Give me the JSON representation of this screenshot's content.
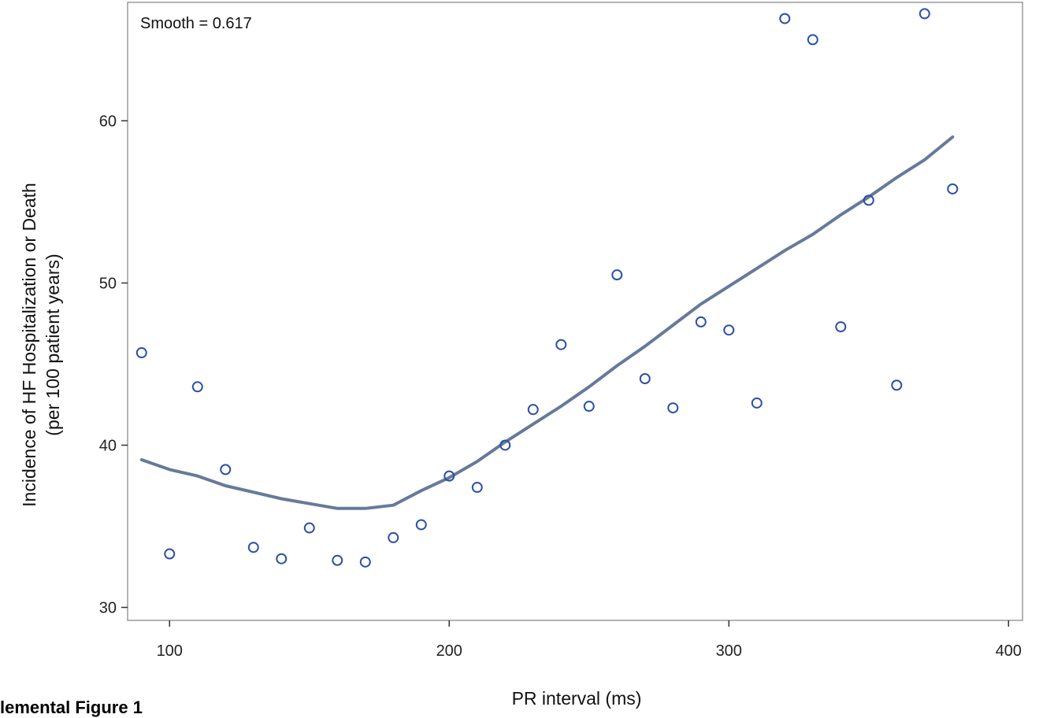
{
  "chart_data": {
    "type": "scatter",
    "annotation": "Smooth = 0.617",
    "xlabel": "PR interval (ms)",
    "ylabel_line1": "Incidence of HF Hospitalization or Death",
    "ylabel_line2": "(per 100 patient years)",
    "xlim": [
      85,
      405
    ],
    "ylim": [
      29.2,
      67.3
    ],
    "xticks": [
      100,
      200,
      300,
      400
    ],
    "yticks": [
      30,
      40,
      50,
      60
    ],
    "grid": false,
    "points": {
      "x": [
        90,
        100,
        110,
        120,
        130,
        140,
        150,
        160,
        170,
        180,
        190,
        200,
        210,
        220,
        230,
        240,
        250,
        260,
        270,
        280,
        290,
        300,
        310,
        320,
        330,
        340,
        350,
        360,
        370,
        380
      ],
      "y": [
        45.7,
        33.3,
        43.6,
        38.5,
        33.7,
        33.0,
        34.9,
        32.9,
        32.8,
        34.3,
        35.1,
        38.1,
        37.4,
        40.0,
        42.2,
        46.2,
        42.4,
        50.5,
        44.1,
        42.3,
        47.6,
        47.1,
        42.6,
        66.3,
        65.0,
        47.3,
        55.1,
        43.7,
        66.6,
        55.8
      ]
    },
    "smooth": {
      "x": [
        90,
        100,
        110,
        120,
        130,
        140,
        150,
        160,
        170,
        180,
        190,
        200,
        210,
        220,
        230,
        240,
        250,
        260,
        270,
        280,
        290,
        300,
        310,
        320,
        330,
        340,
        350,
        360,
        370,
        380
      ],
      "y": [
        39.1,
        38.5,
        38.1,
        37.5,
        37.1,
        36.7,
        36.4,
        36.1,
        36.1,
        36.3,
        37.2,
        38.0,
        39.0,
        40.2,
        41.3,
        42.4,
        43.6,
        44.9,
        46.1,
        47.4,
        48.7,
        49.8,
        50.9,
        52.0,
        53.0,
        54.2,
        55.3,
        56.5,
        57.6,
        59.0
      ]
    },
    "colors": {
      "marker": "#2c50a8",
      "line": "#667a9a",
      "frame": "#9a9a9a"
    }
  },
  "caption": "lemental Figure 1"
}
